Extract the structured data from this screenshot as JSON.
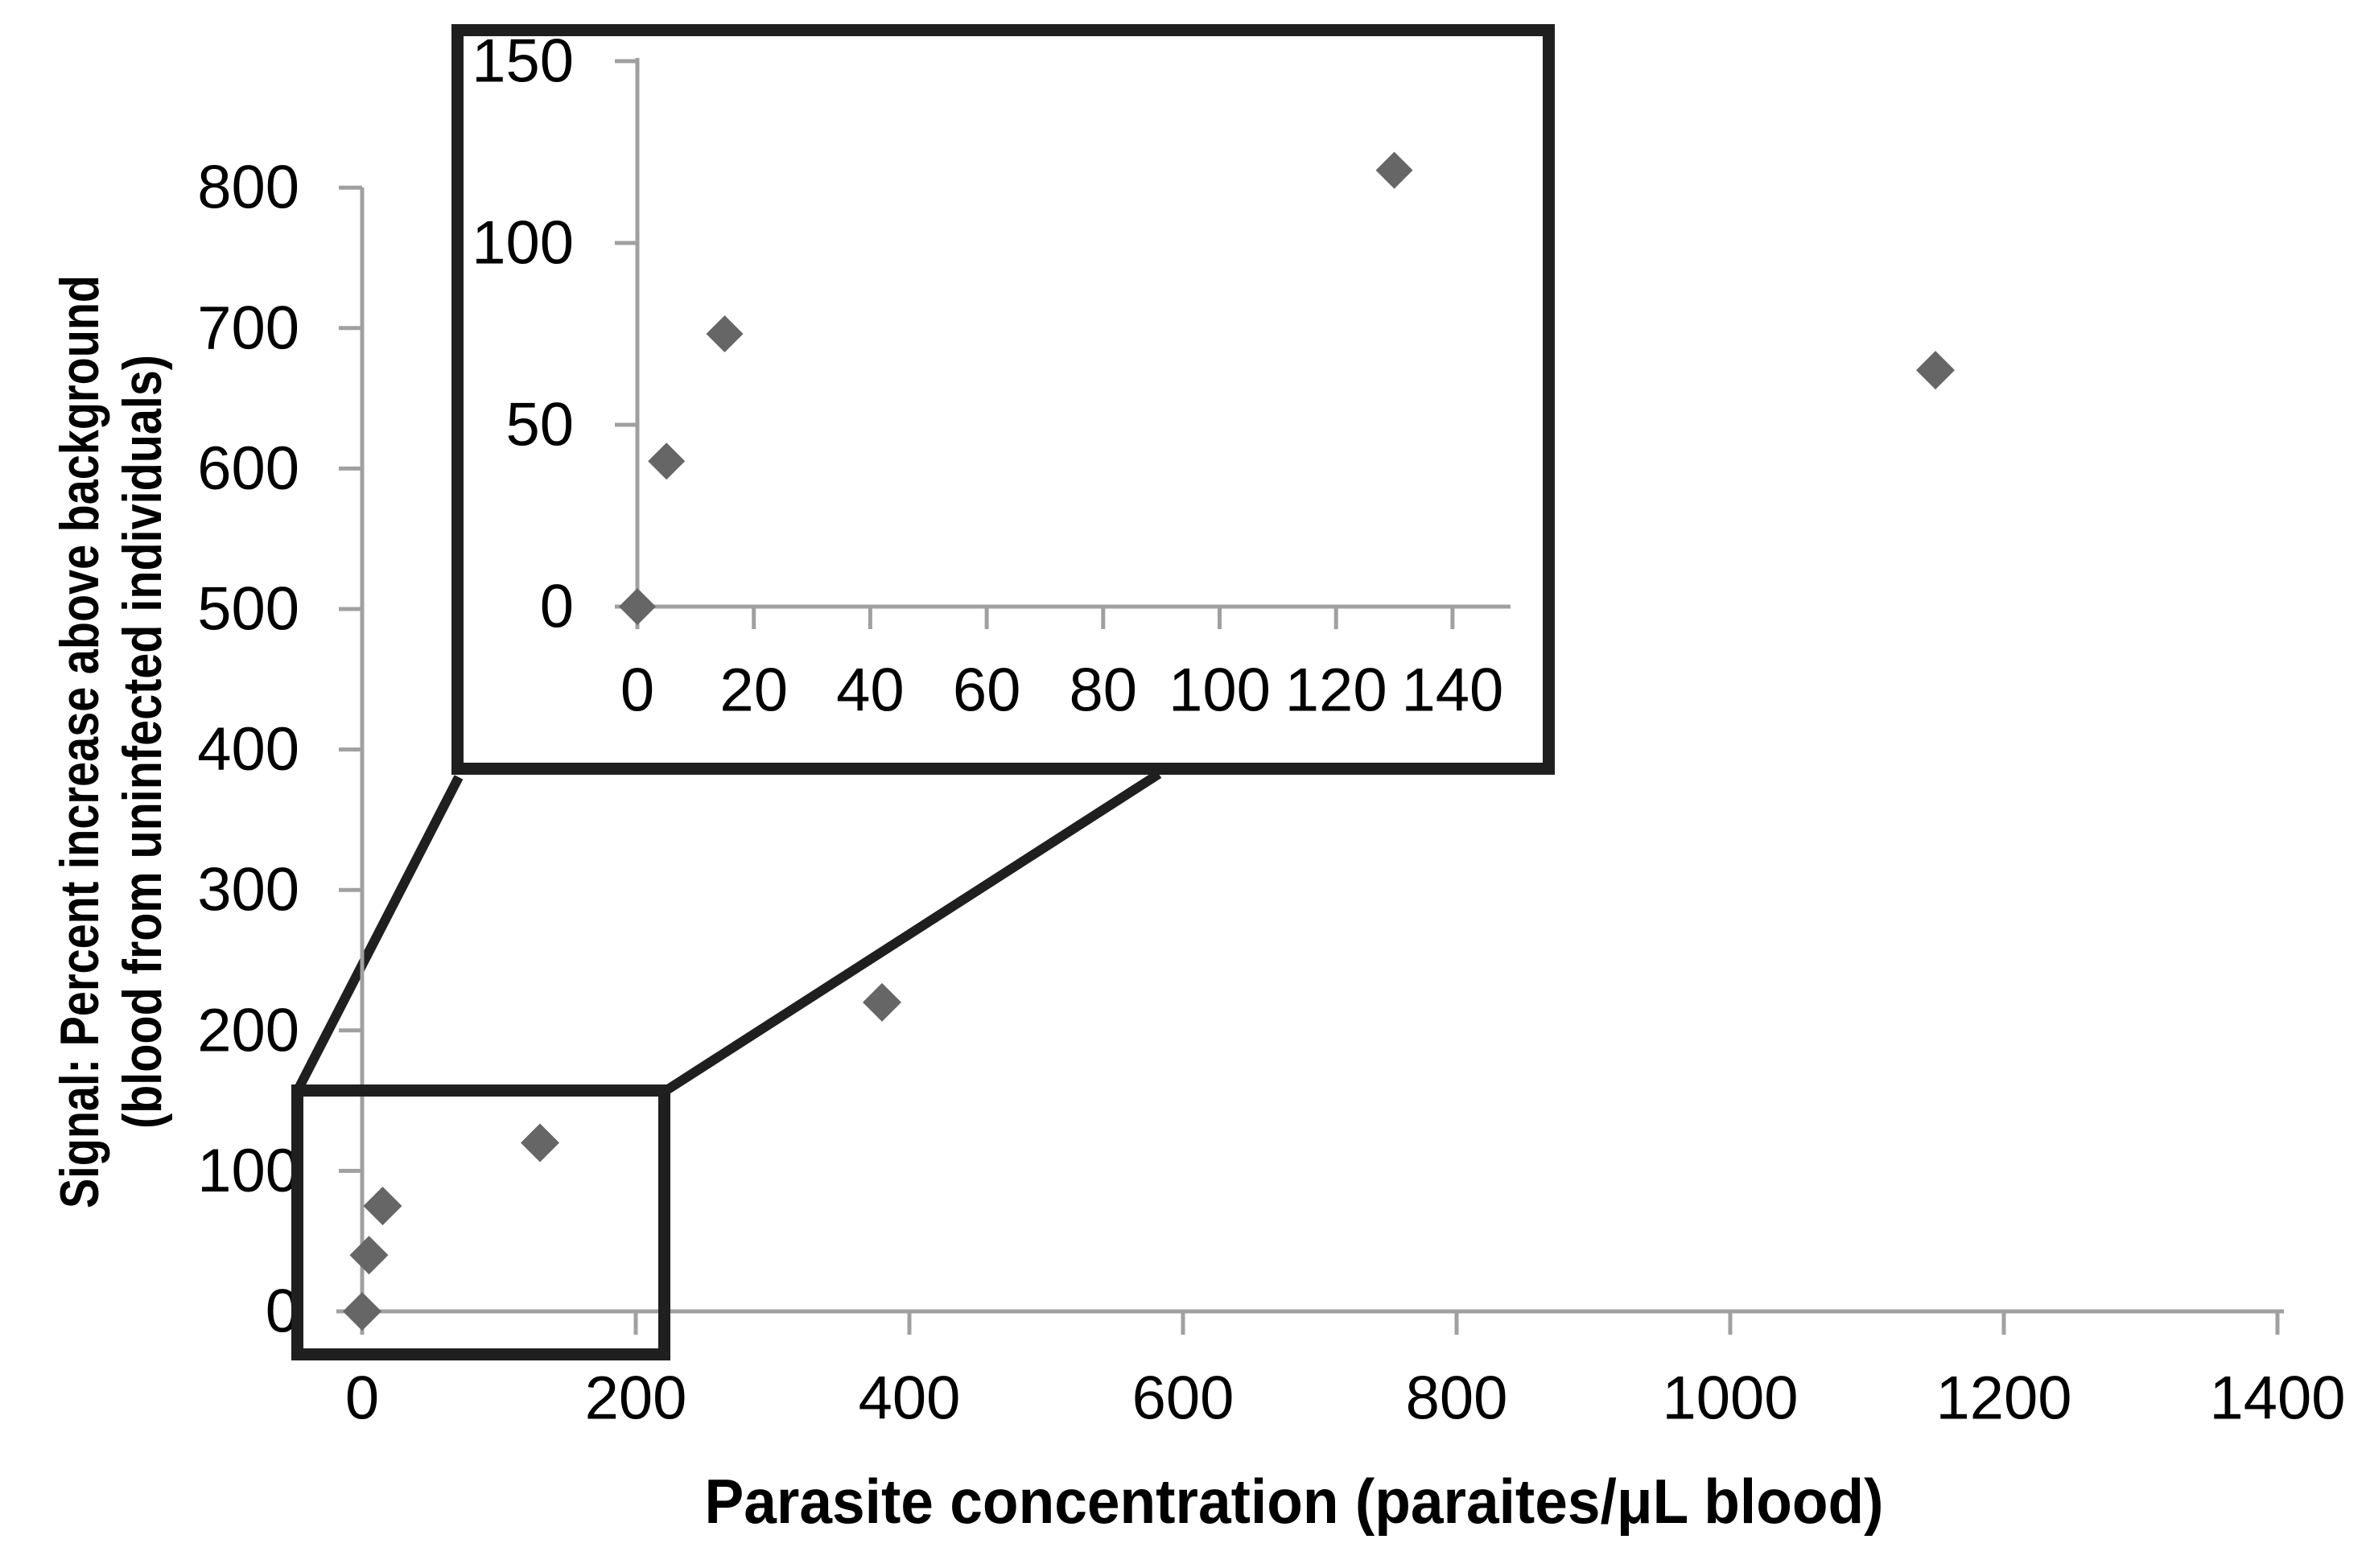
{
  "figure": {
    "background": "#ffffff",
    "marker_color": "#666666",
    "axis_color": "#a0a0a0",
    "annotation_color": "#1f1f1f",
    "label_color": "#000000"
  },
  "chart_data": [
    {
      "id": "main",
      "type": "scatter",
      "marker": "diamond",
      "title": "",
      "xlabel": "Parasite concentration (paraites/μL blood)",
      "ylabel_lines": [
        "Signal: Percent increase above background",
        "(blood from uninfected individuals)"
      ],
      "x_tick_labels": [
        "0",
        "200",
        "400",
        "600",
        "800",
        "1000",
        "1200",
        "1400"
      ],
      "y_tick_labels": [
        "0",
        "100",
        "200",
        "300",
        "400",
        "500",
        "600",
        "700",
        "800"
      ],
      "xlim": [
        0,
        1400
      ],
      "ylim": [
        0,
        800
      ],
      "grid": false,
      "legend": "none",
      "points": [
        {
          "x": 0,
          "y": 0
        },
        {
          "x": 5,
          "y": 40
        },
        {
          "x": 15,
          "y": 75
        },
        {
          "x": 130,
          "y": 120
        },
        {
          "x": 380,
          "y": 220
        },
        {
          "x": 1150,
          "y": 670
        }
      ]
    },
    {
      "id": "inset",
      "type": "scatter",
      "marker": "diamond",
      "title": "",
      "xlabel": "",
      "x_tick_labels": [
        "0",
        "20",
        "40",
        "60",
        "80",
        "100",
        "120",
        "140"
      ],
      "y_tick_labels": [
        "0",
        "50",
        "100",
        "150"
      ],
      "xlim": [
        0,
        150
      ],
      "ylim": [
        0,
        150
      ],
      "grid": false,
      "legend": "none",
      "points": [
        {
          "x": 0,
          "y": 0
        },
        {
          "x": 5,
          "y": 40
        },
        {
          "x": 15,
          "y": 75
        },
        {
          "x": 130,
          "y": 120
        }
      ]
    }
  ]
}
